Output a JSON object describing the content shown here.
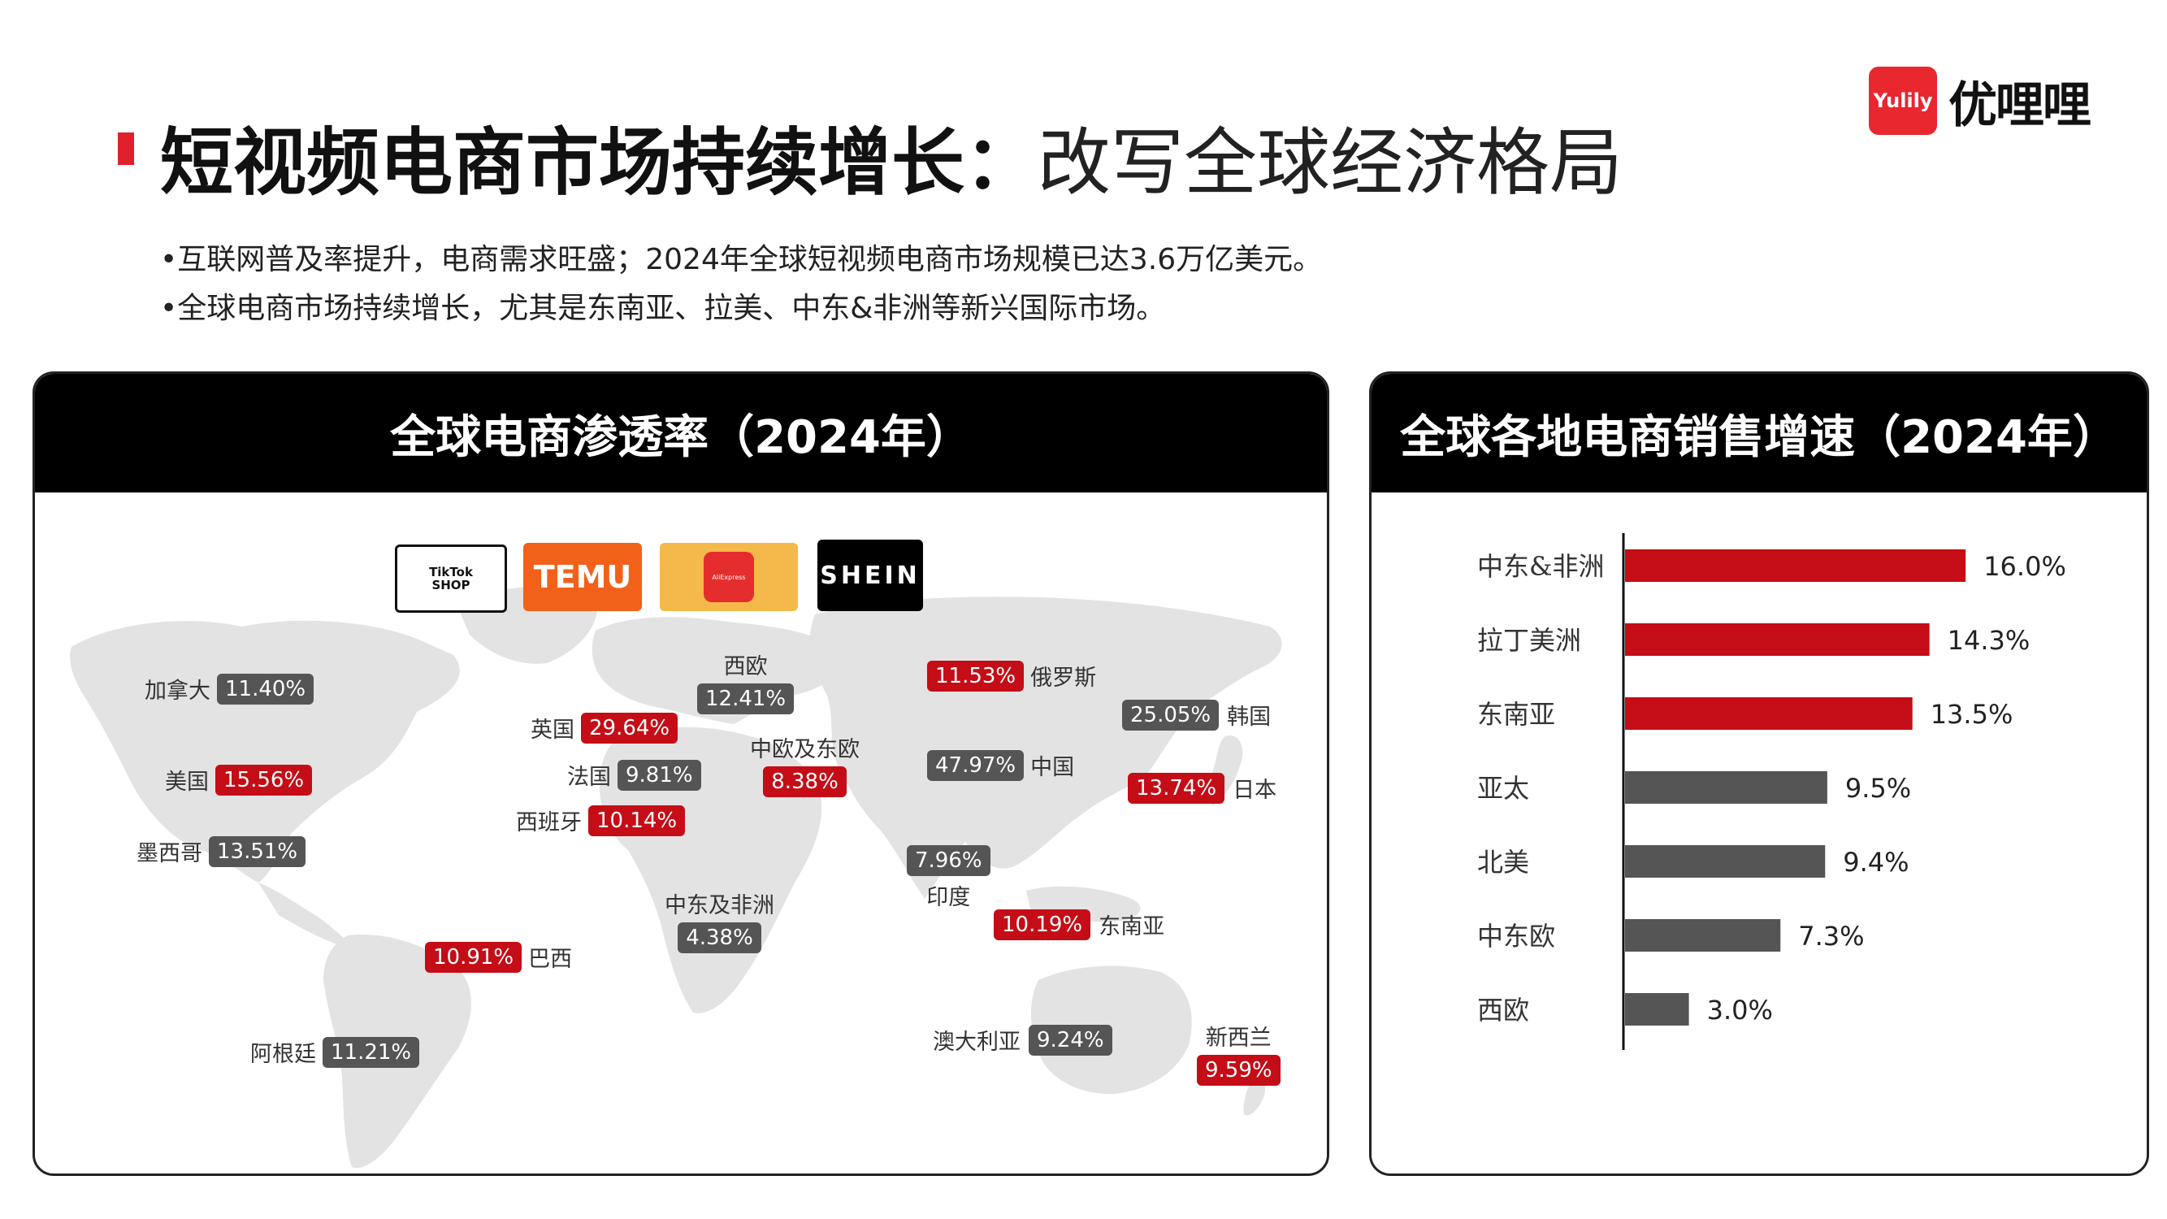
{
  "header": {
    "title_bold": "短视频电商市场持续增长：",
    "title_rest": "改写全球经济格局",
    "logo_mark": "Yulily",
    "logo_text": "优哩哩"
  },
  "bullets": [
    "•互联网普及率提升，电商需求旺盛；2024年全球短视频电商市场规模已达3.6万亿美元。",
    "•全球电商市场持续增长，尤其是东南亚、拉美、中东&非洲等新兴国际市场。"
  ],
  "map_panel": {
    "title": "全球电商渗透率（2024年）",
    "brands": [
      "TikTok SHOP",
      "TEMU",
      "AliExpress",
      "SHEIN"
    ],
    "regions": [
      {
        "name": "加拿大",
        "value": "11.40%",
        "color": "gray"
      },
      {
        "name": "美国",
        "value": "15.56%",
        "color": "red"
      },
      {
        "name": "墨西哥",
        "value": "13.51%",
        "color": "gray"
      },
      {
        "name": "巴西",
        "value": "10.91%",
        "color": "red"
      },
      {
        "name": "阿根廷",
        "value": "11.21%",
        "color": "gray"
      },
      {
        "name": "英国",
        "value": "29.64%",
        "color": "red"
      },
      {
        "name": "法国",
        "value": "9.81%",
        "color": "gray"
      },
      {
        "name": "西班牙",
        "value": "10.14%",
        "color": "red"
      },
      {
        "name": "西欧",
        "value": "12.41%",
        "color": "gray"
      },
      {
        "name": "中欧及东欧",
        "value": "8.38%",
        "color": "red"
      },
      {
        "name": "中东及非洲",
        "value": "4.38%",
        "color": "gray"
      },
      {
        "name": "俄罗斯",
        "value": "11.53%",
        "color": "red"
      },
      {
        "name": "中国",
        "value": "47.97%",
        "color": "gray"
      },
      {
        "name": "韩国",
        "value": "25.05%",
        "color": "gray"
      },
      {
        "name": "日本",
        "value": "13.74%",
        "color": "red"
      },
      {
        "name": "印度",
        "value": "7.96%",
        "color": "gray"
      },
      {
        "name": "东南亚",
        "value": "10.19%",
        "color": "red"
      },
      {
        "name": "澳大利亚",
        "value": "9.24%",
        "color": "gray"
      },
      {
        "name": "新西兰",
        "value": "9.59%",
        "color": "red"
      }
    ]
  },
  "chart_data": {
    "type": "bar",
    "orientation": "horizontal",
    "title": "全球各地电商销售增速（2024年）",
    "categories": [
      "中东&非洲",
      "拉丁美洲",
      "东南亚",
      "亚太",
      "北美",
      "中东欧",
      "西欧"
    ],
    "values": [
      16.0,
      14.3,
      13.5,
      9.5,
      9.4,
      7.3,
      3.0
    ],
    "labels": [
      "16.0%",
      "14.3%",
      "13.5%",
      "9.5%",
      "9.4%",
      "7.3%",
      "3.0%"
    ],
    "colors": [
      "#c40d16",
      "#c40d16",
      "#c40d16",
      "#555555",
      "#555555",
      "#555555",
      "#555555"
    ],
    "xlim": [
      0,
      20
    ],
    "grid": false
  }
}
